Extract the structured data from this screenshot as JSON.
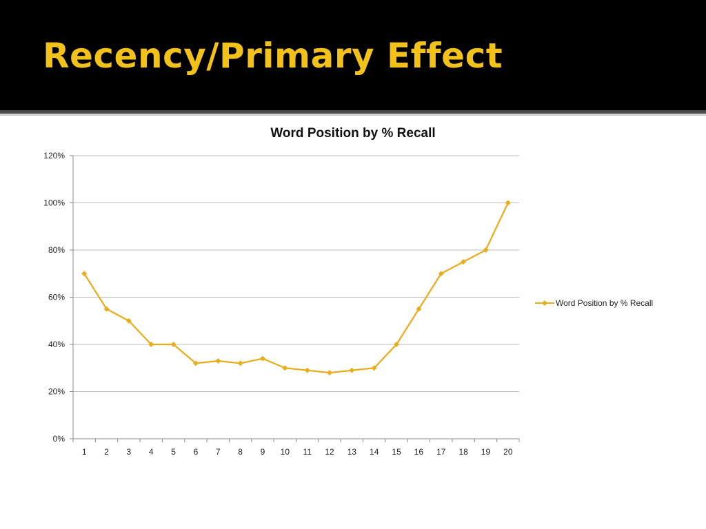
{
  "slide": {
    "title": "Recency/Primary Effect"
  },
  "colors": {
    "header_bg": "#000000",
    "title_color": "#f3c21a",
    "series_color": "#e9ac1a",
    "grid_color": "#bdbdbd"
  },
  "chart_data": {
    "type": "line",
    "title": "Word Position by % Recall",
    "xlabel": "",
    "ylabel": "",
    "categories": [
      "1",
      "2",
      "3",
      "4",
      "5",
      "6",
      "7",
      "8",
      "9",
      "10",
      "11",
      "12",
      "13",
      "14",
      "15",
      "16",
      "17",
      "18",
      "19",
      "20"
    ],
    "series": [
      {
        "name": "Word Position by % Recall",
        "marker": "diamond",
        "values": [
          70,
          55,
          50,
          40,
          40,
          32,
          33,
          32,
          34,
          30,
          29,
          28,
          29,
          30,
          40,
          55,
          70,
          75,
          80,
          100
        ]
      }
    ],
    "ylim": [
      0,
      120
    ],
    "yticks": [
      "0%",
      "20%",
      "40%",
      "60%",
      "80%",
      "100%",
      "120%"
    ],
    "ytick_values": [
      0,
      20,
      40,
      60,
      80,
      100,
      120
    ],
    "grid": true,
    "legend_position": "right"
  }
}
